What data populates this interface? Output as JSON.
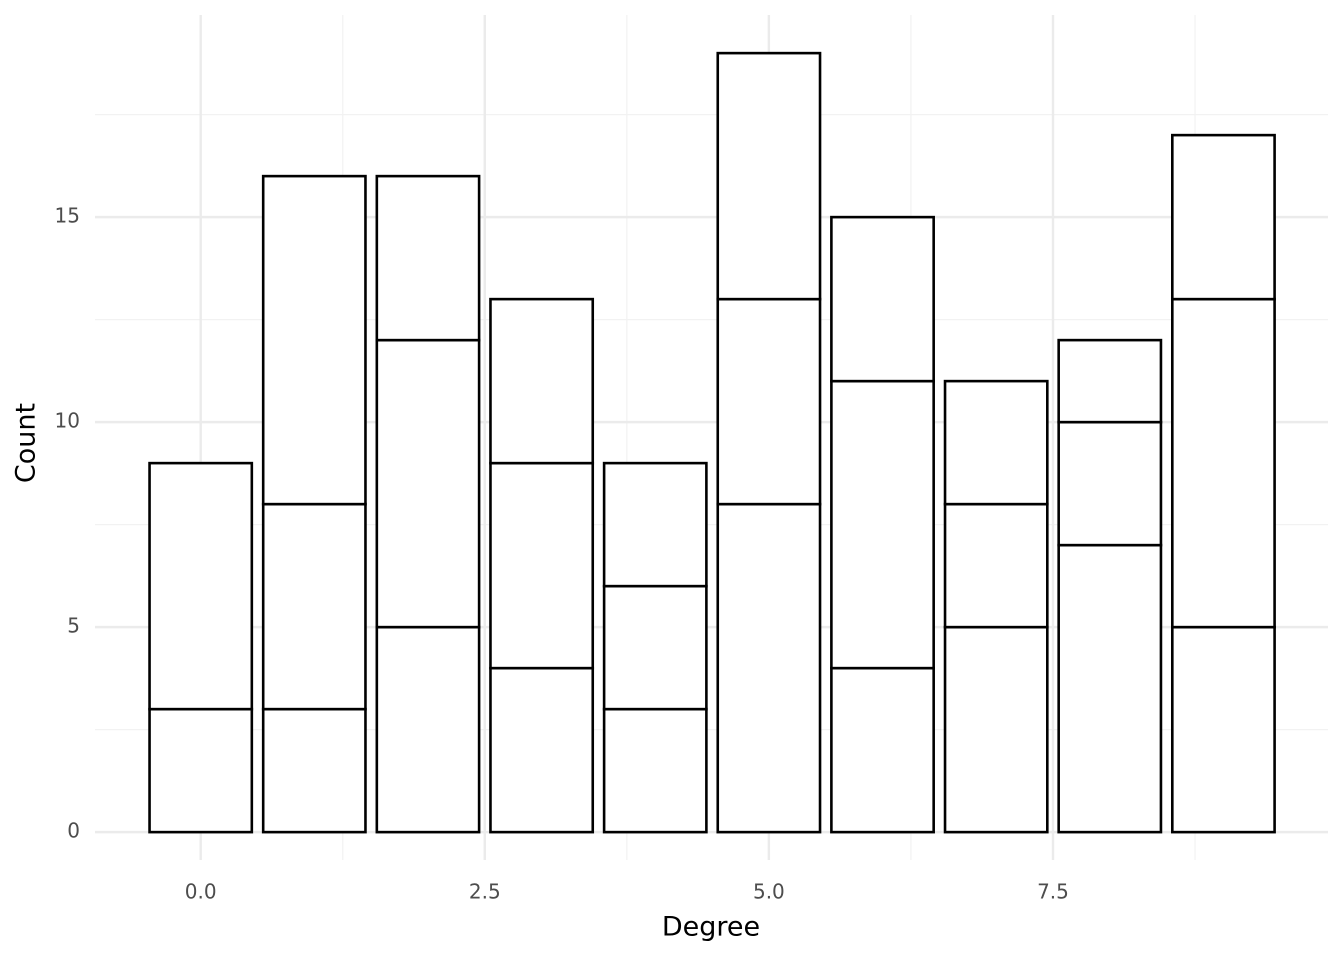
{
  "chart_data": {
    "type": "stacked_bar",
    "x_label": "Degree",
    "y_label": "Count",
    "x": [
      0,
      1,
      2,
      3,
      4,
      5,
      6,
      7,
      8,
      9
    ],
    "series": [
      {
        "color": "#ffffff",
        "values": [
          3,
          3,
          5,
          4,
          3,
          8,
          4,
          5,
          7,
          5
        ]
      },
      {
        "color": "#ffffff",
        "values": [
          6,
          5,
          7,
          5,
          3,
          5,
          7,
          3,
          3,
          8
        ]
      },
      {
        "color": "#ffffff",
        "values": [
          null,
          8,
          4,
          4,
          3,
          6,
          4,
          3,
          2,
          4
        ]
      }
    ],
    "xlim": [
      -0.93,
      9.92
    ],
    "xticks": [
      {
        "value": 0,
        "label": "0.0"
      },
      2.5,
      {
        "value": 5,
        "label": "5.0"
      },
      7.5
    ],
    "ylim": [
      -0.68,
      19.93
    ],
    "yticks": [
      0,
      5,
      10,
      15
    ],
    "grid": true
  }
}
